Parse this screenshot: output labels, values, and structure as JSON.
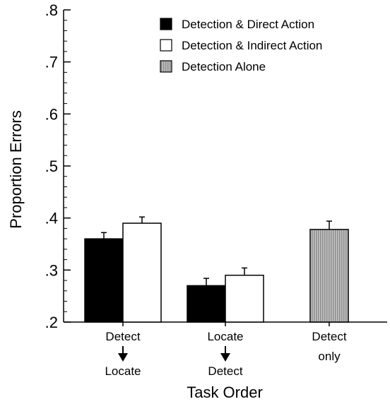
{
  "chart_data": {
    "type": "bar",
    "xlabel": "Task Order",
    "ylabel": "Proportion Errors",
    "ylim": [
      0.2,
      0.8
    ],
    "yticks": [
      ".2",
      ".3",
      ".4",
      ".5",
      ".6",
      ".7",
      ".8"
    ],
    "ytick_values": [
      0.2,
      0.3,
      0.4,
      0.5,
      0.6,
      0.7,
      0.8
    ],
    "error_bars": true,
    "grid": false,
    "legend_position": "top-right",
    "categories": [
      {
        "line1": "Detect",
        "line2": "Locate",
        "arrow": true
      },
      {
        "line1": "Locate",
        "line2": "Detect",
        "arrow": true
      },
      {
        "line1": "Detect",
        "line2": "only",
        "arrow": false
      }
    ],
    "series": [
      {
        "name": "Detection & Direct Action",
        "color": "#000000",
        "pattern": "solid",
        "values": [
          0.36,
          0.27,
          null
        ],
        "errors": [
          0.012,
          0.014,
          null
        ]
      },
      {
        "name": "Detection & Indirect Action",
        "color": "#ffffff",
        "pattern": "solid",
        "values": [
          0.39,
          0.29,
          null
        ],
        "errors": [
          0.012,
          0.014,
          null
        ]
      },
      {
        "name": "Detection Alone",
        "color": "#9a9a9a",
        "pattern": "vertical-lines",
        "values": [
          null,
          null,
          0.378
        ],
        "errors": [
          null,
          null,
          0.016
        ]
      }
    ]
  }
}
